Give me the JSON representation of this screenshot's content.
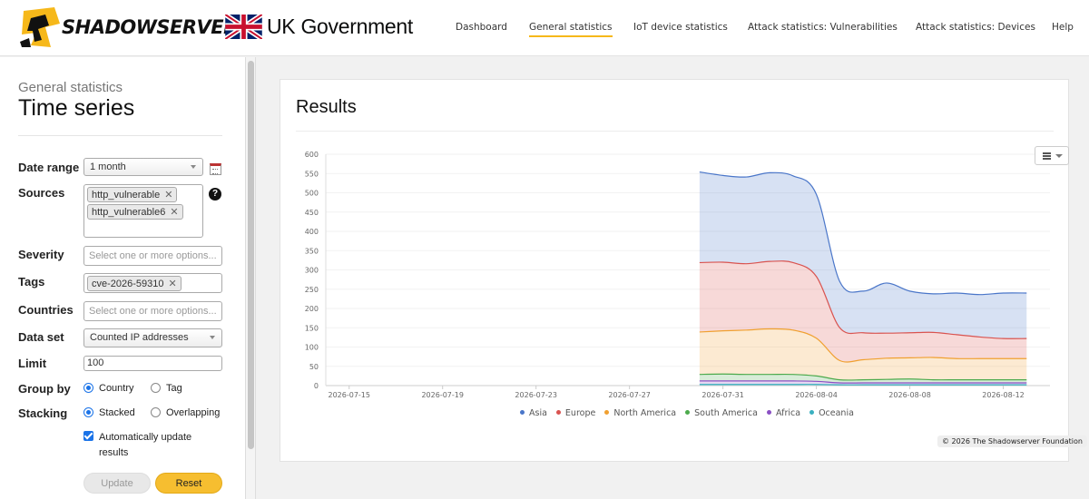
{
  "header": {
    "logo_text": "SHADOWSERVER",
    "partner_text": "UK Government",
    "nav": [
      {
        "label": "Dashboard",
        "active": false
      },
      {
        "label": "General statistics",
        "active": true
      },
      {
        "label": "IoT device statistics",
        "active": false
      },
      {
        "label": "Attack statistics: Vulnerabilities",
        "active": false
      },
      {
        "label": "Attack statistics: Devices",
        "active": false
      },
      {
        "label": "Help",
        "active": false
      }
    ]
  },
  "sidebar": {
    "subtitle": "General statistics",
    "title": "Time series",
    "date_range": {
      "label": "Date range",
      "value": "1 month"
    },
    "sources": {
      "label": "Sources",
      "tags": [
        "http_vulnerable",
        "http_vulnerable6"
      ]
    },
    "severity": {
      "label": "Severity",
      "placeholder": "Select one or more options..."
    },
    "tags": {
      "label": "Tags",
      "tags": [
        "cve-2026-59310"
      ]
    },
    "countries": {
      "label": "Countries",
      "placeholder": "Select one or more options..."
    },
    "data_set": {
      "label": "Data set",
      "value": "Counted IP addresses"
    },
    "limit": {
      "label": "Limit",
      "value": "100"
    },
    "group_by": {
      "label": "Group by",
      "options": [
        "Country",
        "Tag"
      ],
      "selected": "Country"
    },
    "stacking": {
      "label": "Stacking",
      "options": [
        "Stacked",
        "Overlapping"
      ],
      "selected": "Stacked"
    },
    "auto_update": {
      "label": "Automatically update results",
      "checked": true
    },
    "update_label": "Update",
    "reset_label": "Reset"
  },
  "results": {
    "title": "Results",
    "credit": "© 2026 The Shadowserver Foundation"
  },
  "chart_data": {
    "type": "area",
    "stacking": "stacked",
    "title": "",
    "xlabel": "",
    "ylabel": "",
    "x": [
      "2026-07-30",
      "2026-07-31",
      "2026-08-01",
      "2026-08-02",
      "2026-08-03",
      "2026-08-04",
      "2026-08-05",
      "2026-08-06",
      "2026-08-07",
      "2026-08-08",
      "2026-08-09",
      "2026-08-10",
      "2026-08-11",
      "2026-08-12",
      "2026-08-13"
    ],
    "x_ticks": [
      "2026-07-15",
      "2026-07-19",
      "2026-07-23",
      "2026-07-27",
      "2026-07-31",
      "2026-08-04",
      "2026-08-08",
      "2026-08-12"
    ],
    "x_range": [
      "2026-07-14",
      "2026-08-14"
    ],
    "ylim": [
      0,
      600
    ],
    "y_ticks": [
      0,
      50,
      100,
      150,
      200,
      250,
      300,
      350,
      400,
      450,
      500,
      550,
      600
    ],
    "legend_position": "bottom",
    "series": [
      {
        "name": "Asia",
        "color": "#4a76c9",
        "values": [
          235,
          225,
          225,
          230,
          225,
          213,
          120,
          108,
          130,
          108,
          100,
          108,
          110,
          118,
          118
        ]
      },
      {
        "name": "Europe",
        "color": "#d9534f",
        "values": [
          180,
          178,
          172,
          175,
          175,
          160,
          85,
          70,
          65,
          65,
          65,
          62,
          56,
          52,
          52
        ]
      },
      {
        "name": "North America",
        "color": "#f0a030",
        "values": [
          110,
          112,
          115,
          118,
          115,
          98,
          50,
          52,
          55,
          55,
          58,
          55,
          55,
          55,
          55
        ]
      },
      {
        "name": "South America",
        "color": "#4caa4c",
        "values": [
          17,
          18,
          17,
          17,
          17,
          14,
          8,
          8,
          9,
          10,
          8,
          8,
          8,
          8,
          8
        ]
      },
      {
        "name": "Africa",
        "color": "#8a4fc4",
        "values": [
          9,
          9,
          9,
          9,
          9,
          8,
          5,
          5,
          5,
          5,
          5,
          5,
          5,
          5,
          5
        ]
      },
      {
        "name": "Oceania",
        "color": "#3ab0c0",
        "values": [
          3,
          3,
          3,
          3,
          3,
          3,
          2,
          2,
          2,
          2,
          2,
          2,
          2,
          2,
          2
        ]
      }
    ]
  }
}
